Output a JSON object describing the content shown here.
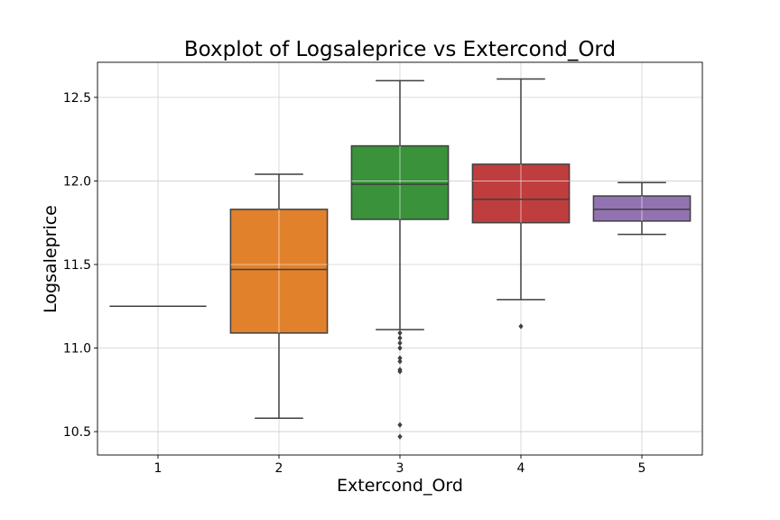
{
  "chart_data": {
    "type": "box",
    "title": "Boxplot of Logsaleprice vs Extercond_Ord",
    "xlabel": "Extercond_Ord",
    "ylabel": "Logsaleprice",
    "categories": [
      "1",
      "2",
      "3",
      "4",
      "5"
    ],
    "ylim": [
      10.36,
      12.71
    ],
    "yticks": [
      10.5,
      11.0,
      11.5,
      12.0,
      12.5
    ],
    "ytick_labels": [
      "10.5",
      "11.0",
      "11.5",
      "12.0",
      "12.5"
    ],
    "grid": true,
    "boxes": [
      {
        "category": "1",
        "whisker_low": 11.25,
        "q1": 11.25,
        "median": 11.25,
        "q3": 11.25,
        "whisker_high": 11.25,
        "outliers": [],
        "color": "#3274a1"
      },
      {
        "category": "2",
        "whisker_low": 10.58,
        "q1": 11.09,
        "median": 11.47,
        "q3": 11.83,
        "whisker_high": 12.04,
        "outliers": [],
        "color": "#e1812c"
      },
      {
        "category": "3",
        "whisker_low": 11.11,
        "q1": 11.77,
        "median": 11.98,
        "q3": 12.21,
        "whisker_high": 12.6,
        "outliers": [
          11.09,
          11.06,
          11.03,
          11.0,
          10.94,
          10.92,
          10.87,
          10.86,
          10.54,
          10.47
        ],
        "color": "#3a923a"
      },
      {
        "category": "4",
        "whisker_low": 11.29,
        "q1": 11.75,
        "median": 11.89,
        "q3": 12.1,
        "whisker_high": 12.61,
        "outliers": [
          11.13
        ],
        "color": "#c03d3e"
      },
      {
        "category": "5",
        "whisker_low": 11.68,
        "q1": 11.76,
        "median": 11.83,
        "q3": 11.91,
        "whisker_high": 11.99,
        "outliers": [],
        "color": "#9372b2"
      }
    ]
  }
}
